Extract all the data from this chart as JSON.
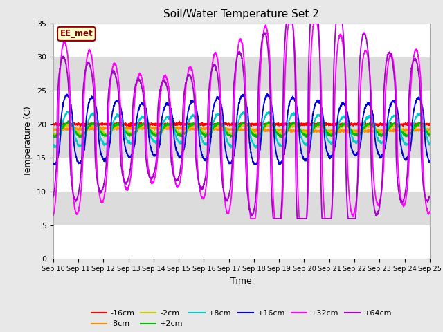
{
  "title": "Soil/Water Temperature Set 2",
  "xlabel": "Time",
  "ylabel": "Temperature (C)",
  "ylim": [
    0,
    35
  ],
  "yticks": [
    0,
    5,
    10,
    15,
    20,
    25,
    30,
    35
  ],
  "x_tick_labels": [
    "Sep 10",
    "Sep 11",
    "Sep 12",
    "Sep 13",
    "Sep 14",
    "Sep 15",
    "Sep 16",
    "Sep 17",
    "Sep 18",
    "Sep 19",
    "Sep 20",
    "Sep 21",
    "Sep 22",
    "Sep 23",
    "Sep 24",
    "Sep 25"
  ],
  "annotation_text": "EE_met",
  "annotation_bg": "#FFFFCC",
  "annotation_border": "#8B0000",
  "annotation_text_color": "#8B0000",
  "series_colors": {
    "-16cm": "#FF0000",
    "-8cm": "#FF8C00",
    "-2cm": "#CCCC00",
    "+2cm": "#00BB00",
    "+8cm": "#00CCCC",
    "+16cm": "#0000DD",
    "+32cm": "#FF00FF",
    "+64cm": "#AA00CC"
  },
  "bg_color": "#E8E8E8",
  "plot_bg_light": "#FFFFFF",
  "plot_bg_dark": "#DCDCDC",
  "grid_color": "#FFFFFF",
  "figsize": [
    6.4,
    4.8
  ],
  "dpi": 100
}
